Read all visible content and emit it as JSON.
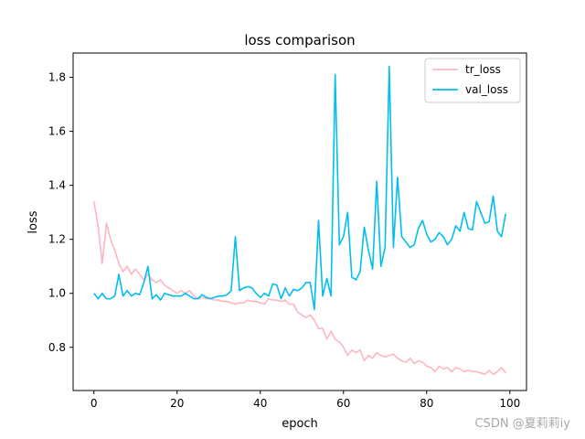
{
  "chart_data": {
    "type": "line",
    "title": "loss comparison",
    "xlabel": "epoch",
    "ylabel": "loss",
    "xlim": [
      -5,
      104
    ],
    "ylim": [
      0.64,
      1.89
    ],
    "xticks": [
      0,
      20,
      40,
      60,
      80,
      100
    ],
    "yticks": [
      0.8,
      1.0,
      1.2,
      1.4,
      1.6,
      1.8
    ],
    "xtick_labels": [
      "0",
      "20",
      "40",
      "60",
      "80",
      "100"
    ],
    "ytick_labels": [
      "0.8",
      "1.0",
      "1.2",
      "1.4",
      "1.6",
      "1.8"
    ],
    "grid": false,
    "legend_position": "top-right",
    "series": [
      {
        "name": "tr_loss",
        "color": "#ffb6c1",
        "x": [
          0,
          1,
          2,
          3,
          4,
          5,
          6,
          7,
          8,
          9,
          10,
          11,
          12,
          13,
          14,
          15,
          16,
          17,
          18,
          19,
          20,
          21,
          22,
          23,
          24,
          25,
          26,
          27,
          28,
          29,
          30,
          31,
          32,
          33,
          34,
          35,
          36,
          37,
          38,
          39,
          40,
          41,
          42,
          43,
          44,
          45,
          46,
          47,
          48,
          49,
          50,
          51,
          52,
          53,
          54,
          55,
          56,
          57,
          58,
          59,
          60,
          61,
          62,
          63,
          64,
          65,
          66,
          67,
          68,
          69,
          70,
          71,
          72,
          73,
          74,
          75,
          76,
          77,
          78,
          79,
          80,
          81,
          82,
          83,
          84,
          85,
          86,
          87,
          88,
          89,
          90,
          91,
          92,
          93,
          94,
          95,
          96,
          97,
          98,
          99
        ],
        "values": [
          1.34,
          1.25,
          1.11,
          1.26,
          1.2,
          1.16,
          1.11,
          1.08,
          1.1,
          1.07,
          1.09,
          1.07,
          1.05,
          1.07,
          1.05,
          1.04,
          1.05,
          1.03,
          1.02,
          1.01,
          1.0,
          1.01,
          1.0,
          1.01,
          0.99,
          0.98,
          0.985,
          0.98,
          0.98,
          0.975,
          0.975,
          0.97,
          0.97,
          0.965,
          0.96,
          0.965,
          0.965,
          0.975,
          0.97,
          0.97,
          0.965,
          0.96,
          0.98,
          0.975,
          0.975,
          0.97,
          0.975,
          0.96,
          0.96,
          0.93,
          0.92,
          0.91,
          0.92,
          0.9,
          0.87,
          0.87,
          0.83,
          0.86,
          0.83,
          0.82,
          0.8,
          0.77,
          0.79,
          0.78,
          0.79,
          0.75,
          0.77,
          0.76,
          0.78,
          0.77,
          0.765,
          0.77,
          0.775,
          0.76,
          0.75,
          0.745,
          0.76,
          0.74,
          0.75,
          0.745,
          0.73,
          0.725,
          0.71,
          0.73,
          0.72,
          0.725,
          0.71,
          0.725,
          0.72,
          0.71,
          0.715,
          0.71,
          0.71,
          0.705,
          0.7,
          0.715,
          0.7,
          0.71,
          0.725,
          0.705
        ]
      },
      {
        "name": "val_loss",
        "color": "#00bfef",
        "x": [
          0,
          1,
          2,
          3,
          4,
          5,
          6,
          7,
          8,
          9,
          10,
          11,
          12,
          13,
          14,
          15,
          16,
          17,
          18,
          19,
          20,
          21,
          22,
          23,
          24,
          25,
          26,
          27,
          28,
          29,
          30,
          31,
          32,
          33,
          34,
          35,
          36,
          37,
          38,
          39,
          40,
          41,
          42,
          43,
          44,
          45,
          46,
          47,
          48,
          49,
          50,
          51,
          52,
          53,
          54,
          55,
          56,
          57,
          58,
          59,
          60,
          61,
          62,
          63,
          64,
          65,
          66,
          67,
          68,
          69,
          70,
          71,
          72,
          73,
          74,
          75,
          76,
          77,
          78,
          79,
          80,
          81,
          82,
          83,
          84,
          85,
          86,
          87,
          88,
          89,
          90,
          91,
          92,
          93,
          94,
          95,
          96,
          97,
          98,
          99
        ],
        "values": [
          1.0,
          0.98,
          1.0,
          0.98,
          0.98,
          0.99,
          1.07,
          0.99,
          1.01,
          0.99,
          1.0,
          0.995,
          1.04,
          1.1,
          0.98,
          0.995,
          0.975,
          1.0,
          0.995,
          0.99,
          0.99,
          0.99,
          1.0,
          0.99,
          0.98,
          0.98,
          0.995,
          0.985,
          0.98,
          0.985,
          0.99,
          0.99,
          0.995,
          1.01,
          1.21,
          1.01,
          1.02,
          1.025,
          1.02,
          1.0,
          0.985,
          1.0,
          0.99,
          1.035,
          1.03,
          0.98,
          1.02,
          0.99,
          1.015,
          1.01,
          1.02,
          1.04,
          1.04,
          0.94,
          1.27,
          0.99,
          1.055,
          0.99,
          1.81,
          1.18,
          1.21,
          1.3,
          1.06,
          1.05,
          1.08,
          1.245,
          1.16,
          1.09,
          1.415,
          1.1,
          1.17,
          1.84,
          1.17,
          1.43,
          1.21,
          1.19,
          1.17,
          1.18,
          1.24,
          1.27,
          1.22,
          1.19,
          1.2,
          1.225,
          1.21,
          1.18,
          1.2,
          1.25,
          1.23,
          1.3,
          1.24,
          1.235,
          1.34,
          1.3,
          1.26,
          1.265,
          1.36,
          1.23,
          1.21,
          1.295
        ]
      }
    ]
  },
  "watermark": "CSDN @夏莉莉iy"
}
